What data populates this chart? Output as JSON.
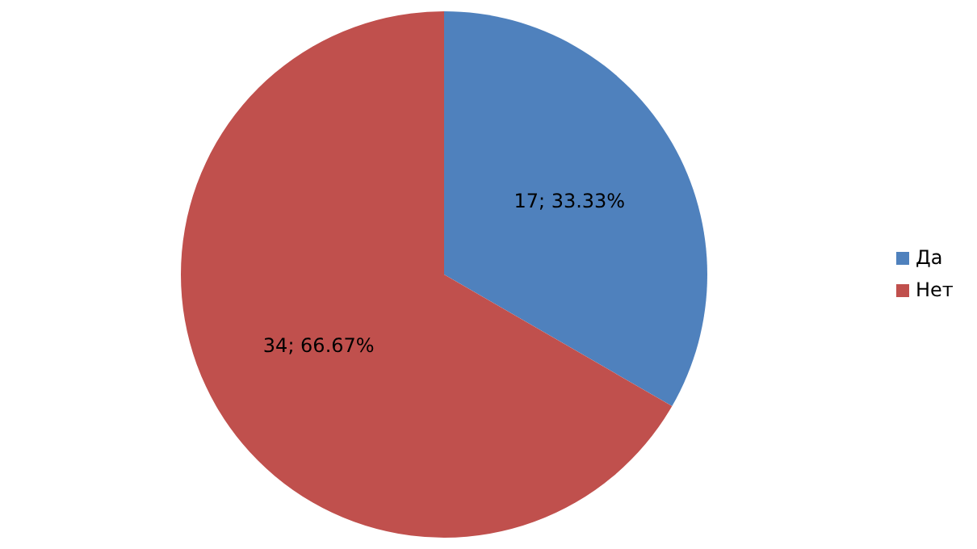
{
  "chart_data": {
    "type": "pie",
    "categories": [
      "Да",
      "Нет"
    ],
    "values": [
      17,
      34
    ],
    "colors": [
      "#4f81bd",
      "#c0504d"
    ],
    "value_labels": [
      "17; 33.33%",
      "34; 66.67%"
    ],
    "legend": "right"
  }
}
